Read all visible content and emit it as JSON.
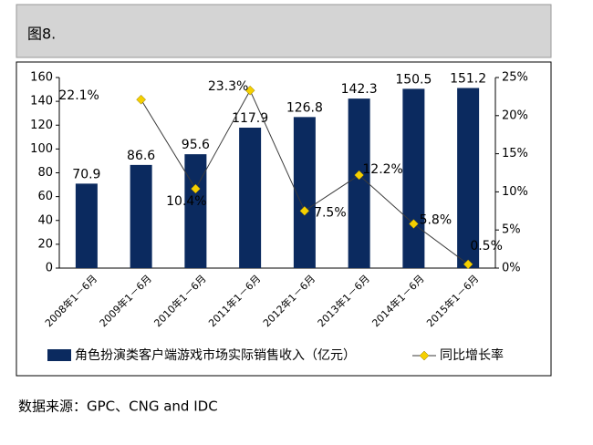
{
  "header": {
    "title": "图8."
  },
  "chart_data": {
    "type": "bar",
    "categories": [
      "2008年1－6月",
      "2009年1－6月",
      "2010年1－6月",
      "2011年1－6月",
      "2012年1－6月",
      "2013年1－6月",
      "2014年1－6月",
      "2015年1－6月"
    ],
    "series": [
      {
        "name": "角色扮演类客户端游戏市场实际销售收入（亿元）",
        "color": "#0b2a5f",
        "values": [
          70.9,
          86.6,
          95.6,
          117.9,
          126.8,
          142.3,
          150.5,
          151.2
        ]
      },
      {
        "name": "同比增长率",
        "type": "line",
        "axis": "y2",
        "color": "#3a3a3a",
        "marker_color": "#f5d000",
        "values": [
          null,
          22.1,
          10.4,
          23.3,
          7.5,
          12.2,
          5.8,
          0.5
        ],
        "value_labels": [
          null,
          "22.1%",
          "10.4%",
          "23.3%",
          "7.5%",
          "12.2%",
          "5.8%",
          "0.5%"
        ]
      }
    ],
    "ylim": [
      0,
      160
    ],
    "yticks": [
      0,
      20,
      40,
      60,
      80,
      100,
      120,
      140,
      160
    ],
    "y2lim": [
      0,
      25
    ],
    "y2ticks": [
      {
        "value": 0,
        "label": "0%"
      },
      {
        "value": 5,
        "label": "5%"
      },
      {
        "value": 10,
        "label": "10%"
      },
      {
        "value": 15,
        "label": "15%"
      },
      {
        "value": 20,
        "label": "20%"
      },
      {
        "value": 25,
        "label": "25%"
      }
    ],
    "legend": "bottom"
  },
  "source": "数据来源：GPC、CNG and IDC"
}
